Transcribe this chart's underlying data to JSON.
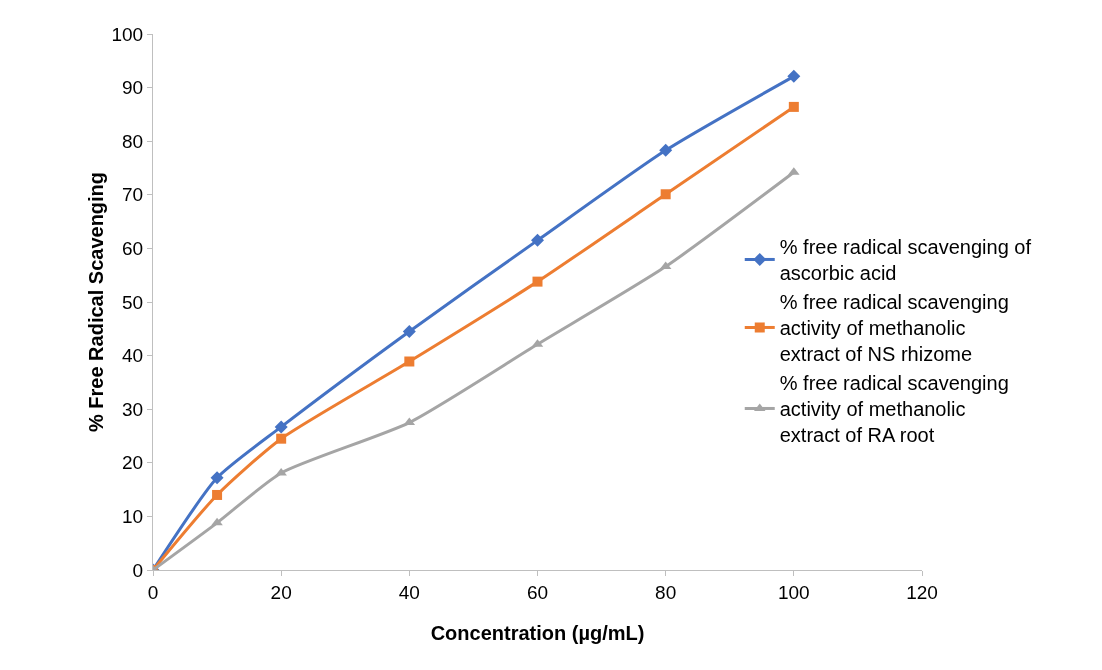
{
  "chart_data": {
    "type": "line",
    "xlabel": "Concentration (µg/mL)",
    "ylabel": "% Free Radical Scavenging",
    "x": [
      0,
      10,
      20,
      40,
      60,
      80,
      100
    ],
    "series": [
      {
        "name": "% free radical scavenging of ascorbic acid",
        "color": "#4472c4",
        "marker": "diamond",
        "values": [
          0,
          17.2,
          26.7,
          44.5,
          61.5,
          78.3,
          92.1
        ]
      },
      {
        "name": "% free radical scavenging activity of methanolic extract of NS rhizome",
        "color": "#ed7d31",
        "marker": "square",
        "values": [
          0,
          14.0,
          24.5,
          38.9,
          53.8,
          70.1,
          86.4
        ]
      },
      {
        "name": "% free radical scavenging activity of methanolic extract of RA root",
        "color": "#a5a5a5",
        "marker": "triangle",
        "values": [
          0,
          8.8,
          18.1,
          27.5,
          42.1,
          56.6,
          74.2
        ]
      }
    ],
    "xlim": [
      0,
      120
    ],
    "xticks": [
      0,
      20,
      40,
      60,
      80,
      100,
      120
    ],
    "ylim": [
      0,
      100
    ],
    "yticks": [
      0,
      10,
      20,
      30,
      40,
      50,
      60,
      70,
      80,
      90,
      100
    ],
    "grid": false,
    "legend": "right",
    "line_style": "solid"
  }
}
